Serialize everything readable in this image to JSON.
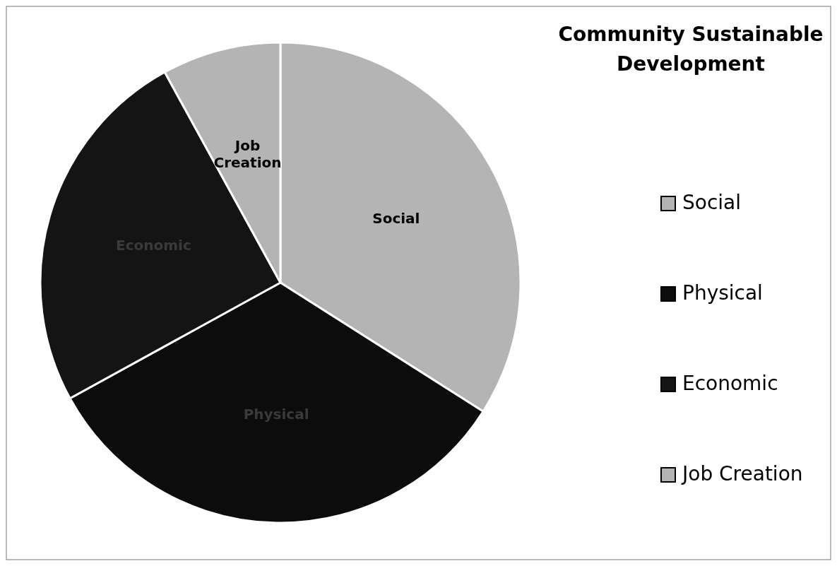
{
  "chart_data": {
    "type": "pie",
    "title": "Community  Sustainable Development",
    "categories": [
      "Social",
      "Physical",
      "Economic",
      "Job Creation"
    ],
    "values": [
      34,
      33,
      25,
      8
    ],
    "colors": [
      "#b4b4b4",
      "#0c0c0c",
      "#141414",
      "#b4b4b4"
    ],
    "legend": "right"
  }
}
